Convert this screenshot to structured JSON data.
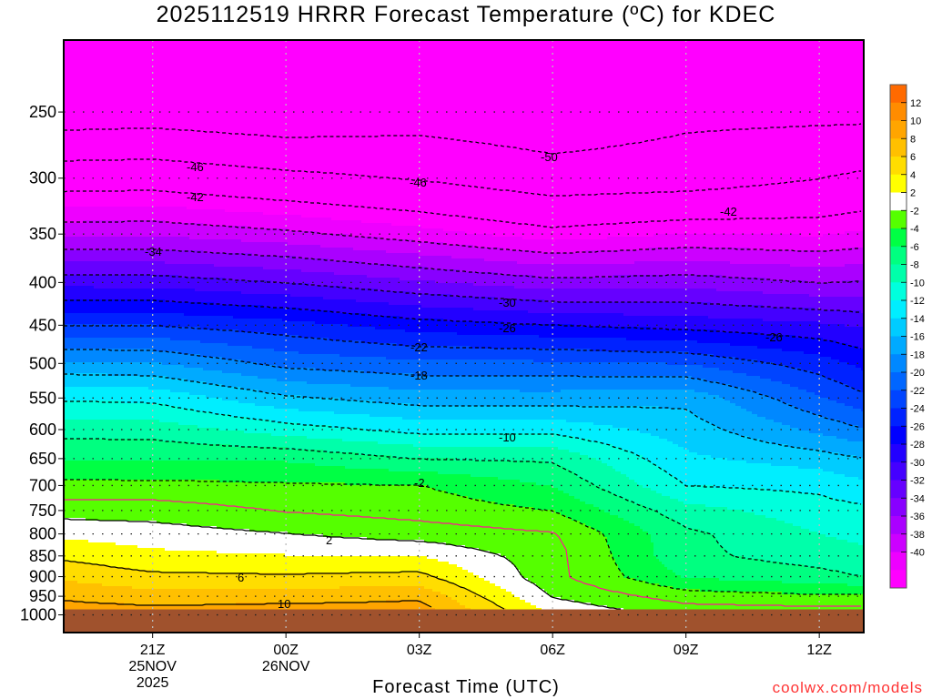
{
  "title": "2025112519 HRRR Forecast Temperature (ºC) for KDEC",
  "chart_data": {
    "type": "heatmap",
    "subtype": "filled time-height contour",
    "title": "2025112519 HRRR Forecast Temperature (ºC) for KDEC",
    "xlabel": "Forecast Time (UTC)",
    "ylabel": "",
    "xlim_hours": [
      0,
      18
    ],
    "ylim_hpa": [
      205,
      1050
    ],
    "y_log_scale": true,
    "x_ticks": [
      {
        "hour": 2,
        "lines": [
          "21Z",
          "25NOV",
          "2025"
        ]
      },
      {
        "hour": 5,
        "lines": [
          "00Z",
          "26NOV"
        ]
      },
      {
        "hour": 8,
        "lines": [
          "03Z"
        ]
      },
      {
        "hour": 11,
        "lines": [
          "06Z"
        ]
      },
      {
        "hour": 14,
        "lines": [
          "09Z"
        ]
      },
      {
        "hour": 17,
        "lines": [
          "12Z"
        ]
      }
    ],
    "y_ticks": [
      250,
      300,
      350,
      400,
      450,
      500,
      550,
      600,
      650,
      700,
      750,
      800,
      850,
      900,
      950,
      1000
    ],
    "grid": true,
    "surface_pressure_hpa": 985,
    "surface_color": "#a0522d",
    "hours": [
      0,
      2,
      5,
      8,
      11,
      14,
      17,
      18
    ],
    "levels_hpa": [
      200,
      250,
      300,
      350,
      400,
      450,
      500,
      550,
      600,
      650,
      700,
      750,
      800,
      850,
      900,
      950,
      1000,
      1050
    ],
    "temperature_c": [
      [
        -58,
        -52.3,
        -43.7,
        -36.4,
        -28.7,
        -22,
        -15.6,
        -10.3,
        -6.8,
        -4.1,
        -1.4,
        1.2,
        3.5,
        5.6,
        7.6,
        9.6,
        11.5,
        13
      ],
      [
        -58,
        -52,
        -43.5,
        -36.3,
        -28.8,
        -22,
        -15.8,
        -10.5,
        -6.9,
        -4.2,
        -1.4,
        1.1,
        3.0,
        4.5,
        6.5,
        8.8,
        11.3,
        13
      ],
      [
        -58,
        -53,
        -45,
        -37.4,
        -30,
        -23.2,
        -18.6,
        -13.6,
        -9,
        -4.3,
        -1.7,
        -0.1,
        2.1,
        4.1,
        6.3,
        9,
        11.7,
        13
      ],
      [
        -57,
        -52,
        -46.2,
        -39.1,
        -31.7,
        -25,
        -19.5,
        -15,
        -10.6,
        -6,
        -1.9,
        -0.8,
        1.1,
        4,
        6.7,
        9.6,
        11.5,
        13
      ],
      [
        -56,
        -53,
        -48.2,
        -41.1,
        -33.2,
        -25.9,
        -19.6,
        -15.1,
        -10.6,
        -6.3,
        -4.1,
        -2,
        0.2,
        0.8,
        0.6,
        1.9,
        4,
        8
      ],
      [
        -55,
        -51,
        -47.8,
        -39.9,
        -32.8,
        -26.7,
        -20.1,
        -14.5,
        -13,
        -11.6,
        -10,
        -7.2,
        -5.5,
        -5.5,
        -4.2,
        -0.9,
        1.5,
        3
      ],
      [
        -55,
        -51,
        -46,
        -40.2,
        -34,
        -27.6,
        -23,
        -19.8,
        -16.5,
        -13,
        -10.5,
        -9.1,
        -8,
        -6.9,
        -5.3,
        -1.6,
        1.5,
        3
      ],
      [
        -55,
        -51,
        -45.3,
        -39.6,
        -33.8,
        -28.3,
        -24.6,
        -21.5,
        -17.8,
        -13.9,
        -11.5,
        -9.5,
        -8.6,
        -7.4,
        -6,
        -1.5,
        1.5,
        3
      ]
    ],
    "color_bounds": [
      -40,
      -38,
      -36,
      -34,
      -32,
      -30,
      -28,
      -26,
      -24,
      -22,
      -20,
      -18,
      -16,
      -14,
      -12,
      -10,
      -8,
      -6,
      -4,
      -2,
      2,
      4,
      6,
      8,
      10,
      12
    ],
    "colors": [
      "#ff00ff",
      "#ee00ff",
      "#cc00ff",
      "#aa00ff",
      "#8800ff",
      "#6600ff",
      "#4400ff",
      "#2200ff",
      "#0000ff",
      "#0022ff",
      "#0044ff",
      "#0066ff",
      "#0088ff",
      "#00aaff",
      "#00ccff",
      "#00eeff",
      "#00ffdd",
      "#00ffaa",
      "#00ff80",
      "#00ff44",
      "#55ff00",
      "#ffffff",
      "#ffff00",
      "#ffdd00",
      "#ffc000",
      "#ffa500",
      "#ff8c00",
      "#ff6a00"
    ],
    "colorbar_labels": [
      "12",
      "10",
      "8",
      "6",
      "4",
      "2",
      "-2",
      "-4",
      "-6",
      "-8",
      "-10",
      "-12",
      "-14",
      "-16",
      "-18",
      "-20",
      "-22",
      "-24",
      "-26",
      "-28",
      "-30",
      "-32",
      "-34",
      "-36",
      "-38",
      "-40"
    ],
    "contour_levels": [
      -50,
      -46,
      -42,
      -38,
      -34,
      -30,
      -26,
      -22,
      -18,
      -14,
      -10,
      -6,
      -2,
      0,
      2,
      6,
      10
    ],
    "freezing_line_color": "#ff1493",
    "contour_labels": [
      "-46",
      "-42",
      "-34",
      "-46",
      "-50",
      "-42",
      "-30",
      "-26",
      "-26",
      "-22",
      "-18",
      "-10",
      "-2",
      "2",
      "6",
      "10"
    ]
  },
  "credit": "coolwx.com/models"
}
